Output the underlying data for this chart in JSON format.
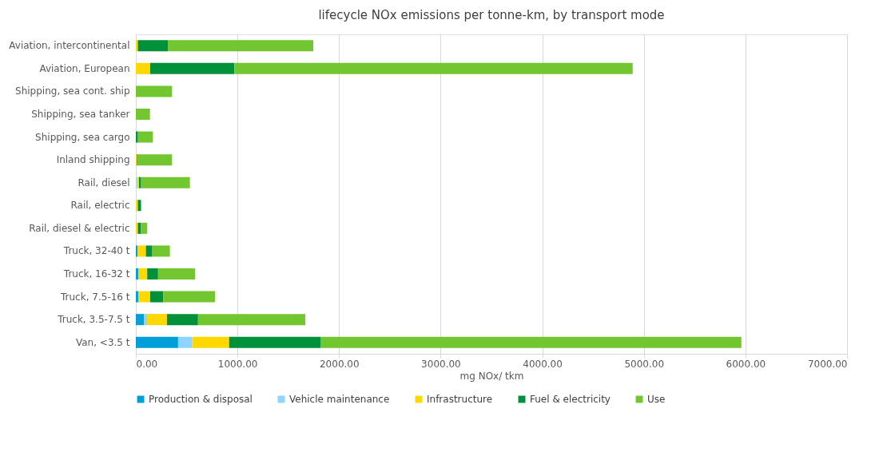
{
  "chart_data": {
    "type": "bar",
    "orientation": "horizontal",
    "stacked": true,
    "title": "lifecycle NOx emissions per tonne-km, by transport mode",
    "xlabel": "mg NOx/ tkm",
    "categories": [
      "Aviation, intercontinental",
      "Aviation, European",
      "Shipping, sea cont. ship",
      "Shipping, sea tanker",
      "Shipping, sea cargo",
      "Inland shipping",
      "Rail, diesel",
      "Rail, electric",
      "Rail, diesel & electric",
      "Truck, 32-40 t",
      "Truck, 16-32 t",
      "Truck, 7.5-16 t",
      "Truck, 3.5-7.5 t",
      "Van, <3.5 t"
    ],
    "series": [
      {
        "name": "Production & disposal",
        "color": "#009fda",
        "values": [
          0,
          0,
          0,
          0,
          0,
          0,
          0,
          0,
          0,
          18,
          26,
          26,
          81,
          416
        ]
      },
      {
        "name": "Vehicle maintenance",
        "color": "#8fd3ff",
        "values": [
          0,
          0,
          0,
          0,
          0,
          0,
          10,
          0,
          0,
          0,
          0,
          0,
          29,
          139
        ]
      },
      {
        "name": "Infrastructure",
        "color": "#ffd800",
        "values": [
          20,
          141,
          0,
          0,
          0,
          10,
          21,
          20,
          20,
          81,
          86,
          115,
          196,
          363
        ]
      },
      {
        "name": "Fuel & electricity",
        "color": "#00913a",
        "values": [
          295,
          829,
          0,
          0,
          21,
          10,
          21,
          31,
          31,
          63,
          107,
          128,
          306,
          899
        ]
      },
      {
        "name": "Use",
        "color": "#72c62f",
        "values": [
          1431,
          3920,
          356,
          139,
          147,
          336,
          480,
          0,
          61,
          173,
          365,
          510,
          1056,
          4143
        ]
      }
    ],
    "xlim": [
      0,
      7000
    ],
    "xticks": [
      {
        "value": 0,
        "label": "0.00"
      },
      {
        "value": 1000,
        "label": "1000.00"
      },
      {
        "value": 2000,
        "label": "2000.00"
      },
      {
        "value": 3000,
        "label": "3000.00"
      },
      {
        "value": 4000,
        "label": "4000.00"
      },
      {
        "value": 5000,
        "label": "5000.00"
      },
      {
        "value": 6000,
        "label": "6000.00"
      },
      {
        "value": 7000,
        "label": "7000.00"
      }
    ],
    "grid": "x",
    "legend": "bottom"
  }
}
